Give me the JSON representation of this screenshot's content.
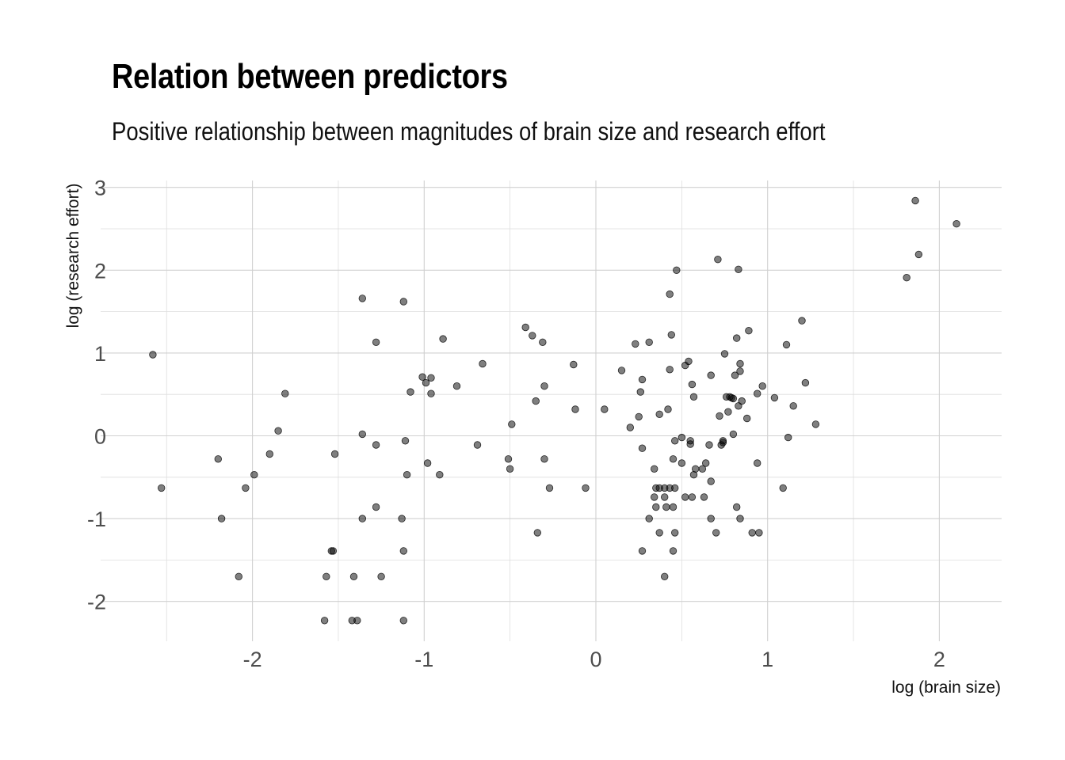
{
  "chart_data": {
    "type": "scatter",
    "title": "Relation between predictors",
    "subtitle": "Positive relationship between magnitudes of brain size and research effort",
    "xlabel": "log (brain size)",
    "ylabel": "log (research effort)",
    "xlim": [
      -2.68,
      2.34
    ],
    "ylim": [
      -2.47,
      3.1
    ],
    "x_ticks": [
      -2,
      -1,
      0,
      1,
      2
    ],
    "x_tick_labels": [
      "-2",
      "-1",
      "0",
      "1",
      "2"
    ],
    "y_ticks": [
      -2,
      -1,
      0,
      1,
      2,
      3
    ],
    "y_tick_labels": [
      "-2",
      "-1",
      "0",
      "1",
      "2",
      "3"
    ],
    "x_minor": [
      -2.5,
      -1.5,
      -0.5,
      0.5,
      1.5
    ],
    "y_minor": [
      -1.5,
      -0.5,
      0.5,
      1.5,
      2.5
    ],
    "grid": true,
    "legend": "none",
    "point_color": "#000000",
    "point_alpha": 0.5,
    "points": [
      [
        -2.58,
        0.98
      ],
      [
        -2.53,
        -0.63
      ],
      [
        -2.2,
        -0.28
      ],
      [
        -2.18,
        -1.0
      ],
      [
        -2.08,
        -1.7
      ],
      [
        -2.04,
        -0.63
      ],
      [
        -1.99,
        -0.47
      ],
      [
        -1.9,
        -0.22
      ],
      [
        -1.85,
        0.06
      ],
      [
        -1.81,
        0.51
      ],
      [
        -1.58,
        -2.23
      ],
      [
        -1.57,
        -1.7
      ],
      [
        -1.54,
        -1.39
      ],
      [
        -1.53,
        -1.39
      ],
      [
        -1.52,
        -0.22
      ],
      [
        -1.42,
        -2.23
      ],
      [
        -1.41,
        -1.7
      ],
      [
        -1.39,
        -2.23
      ],
      [
        -1.36,
        -1.0
      ],
      [
        -1.36,
        0.02
      ],
      [
        -1.36,
        1.66
      ],
      [
        -1.28,
        1.13
      ],
      [
        -1.28,
        -0.11
      ],
      [
        -1.28,
        -0.86
      ],
      [
        -1.25,
        -1.7
      ],
      [
        -1.13,
        -1.0
      ],
      [
        -1.12,
        -1.39
      ],
      [
        -1.12,
        -2.23
      ],
      [
        -1.12,
        1.62
      ],
      [
        -1.11,
        -0.06
      ],
      [
        -1.1,
        -0.47
      ],
      [
        -1.08,
        0.53
      ],
      [
        -1.01,
        0.71
      ],
      [
        -0.99,
        0.64
      ],
      [
        -0.98,
        -0.33
      ],
      [
        -0.96,
        0.51
      ],
      [
        -0.96,
        0.7
      ],
      [
        -0.91,
        -0.47
      ],
      [
        -0.89,
        1.17
      ],
      [
        -0.81,
        0.6
      ],
      [
        -0.69,
        -0.11
      ],
      [
        -0.66,
        0.87
      ],
      [
        -0.51,
        -0.28
      ],
      [
        -0.5,
        -0.4
      ],
      [
        -0.49,
        0.14
      ],
      [
        -0.41,
        1.31
      ],
      [
        -0.37,
        1.21
      ],
      [
        -0.35,
        0.42
      ],
      [
        -0.34,
        -1.17
      ],
      [
        -0.31,
        1.13
      ],
      [
        -0.3,
        0.6
      ],
      [
        -0.3,
        -0.28
      ],
      [
        -0.27,
        -0.63
      ],
      [
        -0.13,
        0.86
      ],
      [
        -0.12,
        0.32
      ],
      [
        -0.06,
        -0.63
      ],
      [
        0.05,
        0.32
      ],
      [
        0.15,
        0.79
      ],
      [
        0.2,
        0.1
      ],
      [
        0.23,
        1.11
      ],
      [
        0.25,
        0.23
      ],
      [
        0.26,
        0.53
      ],
      [
        0.27,
        0.68
      ],
      [
        0.27,
        -0.15
      ],
      [
        0.27,
        -1.39
      ],
      [
        0.31,
        -1.0
      ],
      [
        0.31,
        1.13
      ],
      [
        0.34,
        -0.4
      ],
      [
        0.34,
        -0.74
      ],
      [
        0.35,
        -0.63
      ],
      [
        0.35,
        -0.86
      ],
      [
        0.37,
        -0.63
      ],
      [
        0.37,
        0.26
      ],
      [
        0.37,
        -1.17
      ],
      [
        0.4,
        -0.63
      ],
      [
        0.4,
        -0.74
      ],
      [
        0.4,
        -1.7
      ],
      [
        0.41,
        -0.86
      ],
      [
        0.42,
        0.32
      ],
      [
        0.43,
        0.8
      ],
      [
        0.43,
        -0.63
      ],
      [
        0.43,
        1.71
      ],
      [
        0.44,
        1.22
      ],
      [
        0.45,
        -0.28
      ],
      [
        0.45,
        -0.86
      ],
      [
        0.45,
        -1.39
      ],
      [
        0.46,
        -0.06
      ],
      [
        0.46,
        -0.63
      ],
      [
        0.46,
        -1.17
      ],
      [
        0.47,
        2.0
      ],
      [
        0.5,
        -0.02
      ],
      [
        0.5,
        -0.33
      ],
      [
        0.52,
        -0.74
      ],
      [
        0.52,
        0.85
      ],
      [
        0.54,
        0.9
      ],
      [
        0.55,
        -0.06
      ],
      [
        0.55,
        -0.1
      ],
      [
        0.56,
        -0.74
      ],
      [
        0.56,
        0.62
      ],
      [
        0.57,
        -0.47
      ],
      [
        0.57,
        0.47
      ],
      [
        0.58,
        -0.4
      ],
      [
        0.62,
        -0.4
      ],
      [
        0.63,
        -0.74
      ],
      [
        0.64,
        -0.33
      ],
      [
        0.66,
        -0.11
      ],
      [
        0.67,
        -0.55
      ],
      [
        0.67,
        0.73
      ],
      [
        0.67,
        -1.0
      ],
      [
        0.7,
        -1.17
      ],
      [
        0.71,
        2.13
      ],
      [
        0.72,
        0.24
      ],
      [
        0.73,
        -0.11
      ],
      [
        0.74,
        -0.06
      ],
      [
        0.74,
        -0.08
      ],
      [
        0.75,
        0.99
      ],
      [
        0.76,
        0.47
      ],
      [
        0.77,
        0.29
      ],
      [
        0.78,
        0.47
      ],
      [
        0.79,
        0.46
      ],
      [
        0.8,
        0.45
      ],
      [
        0.8,
        0.02
      ],
      [
        0.81,
        0.73
      ],
      [
        0.82,
        1.18
      ],
      [
        0.82,
        -0.86
      ],
      [
        0.83,
        2.01
      ],
      [
        0.83,
        0.36
      ],
      [
        0.84,
        -1.0
      ],
      [
        0.84,
        0.87
      ],
      [
        0.84,
        0.78
      ],
      [
        0.85,
        0.42
      ],
      [
        0.88,
        0.21
      ],
      [
        0.89,
        1.27
      ],
      [
        0.91,
        -1.17
      ],
      [
        0.94,
        0.51
      ],
      [
        0.94,
        -0.33
      ],
      [
        0.95,
        -1.17
      ],
      [
        0.97,
        0.6
      ],
      [
        1.04,
        0.46
      ],
      [
        1.09,
        -0.63
      ],
      [
        1.11,
        1.1
      ],
      [
        1.12,
        -0.02
      ],
      [
        1.15,
        0.36
      ],
      [
        1.2,
        1.39
      ],
      [
        1.22,
        0.64
      ],
      [
        1.28,
        0.14
      ],
      [
        1.81,
        1.91
      ],
      [
        1.86,
        2.84
      ],
      [
        1.88,
        2.19
      ],
      [
        2.1,
        2.56
      ]
    ]
  }
}
